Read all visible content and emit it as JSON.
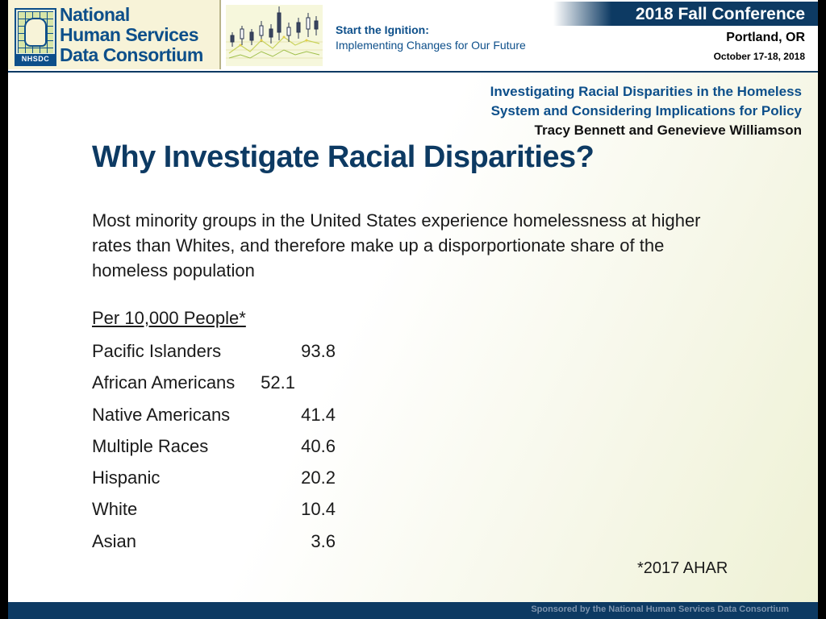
{
  "header": {
    "org_name_lines": [
      "National",
      "Human Services",
      "Data Consortium"
    ],
    "logo_abbr": "NHSDC",
    "tagline_line1": "Start the Ignition:",
    "tagline_line2": "Implementing Changes for Our Future",
    "conference_title": "2018 Fall Conference",
    "location": "Portland, OR",
    "dates": "October 17-18, 2018"
  },
  "session": {
    "title_lines": [
      "Investigating Racial Disparities in the Homeless",
      "System and Considering Implications for Policy"
    ],
    "authors": "Tracy Bennett and Genevieve Williamson"
  },
  "content": {
    "title": "Why Investigate Racial Disparities?",
    "body": "Most minority groups in the United States experience homelessness at higher rates than Whites, and therefore make up a disporportionate share of the homeless population",
    "table_heading": "Per 10,000 People*",
    "rows": [
      {
        "label": "Pacific Islanders",
        "value": "93.8"
      },
      {
        "label": "African Americans",
        "value": "52.1"
      },
      {
        "label": "Native Americans",
        "value": "41.4"
      },
      {
        "label": "Multiple Races",
        "value": "40.6"
      },
      {
        "label": "Hispanic",
        "value": "20.2"
      },
      {
        "label": "White",
        "value": "10.4"
      },
      {
        "label": "Asian",
        "value": "3.6"
      }
    ],
    "footnote": "*2017 AHAR"
  },
  "footer": {
    "sponsor": "Sponsored by the National Human Services Data Consortium"
  },
  "colors": {
    "brand_navy": "#0d3a63",
    "brand_blue": "#0d4f8a",
    "logo_background": "#f7f3d8"
  },
  "icons": {
    "logo": "nhsdc-logo-icon",
    "banner_graphic": "candlestick-chart-graphic"
  }
}
